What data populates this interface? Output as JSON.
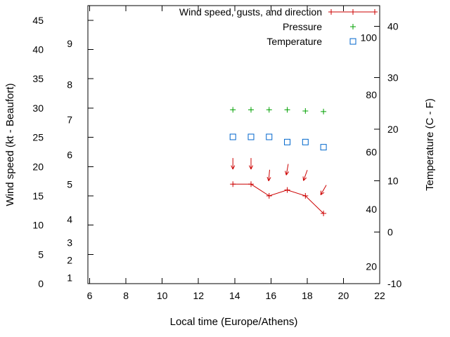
{
  "chart_data": {
    "type": "line",
    "title": "",
    "xlabel": "Local time (Europe/Athens)",
    "x_axis": {
      "ticks": [
        6,
        8,
        10,
        12,
        14,
        16,
        18,
        20,
        22
      ],
      "range": [
        5.9,
        22
      ]
    },
    "left_axis": {
      "label": "Wind speed (kt - Beaufort)",
      "unit": "kt",
      "ticks": [
        0,
        5,
        10,
        15,
        20,
        25,
        30,
        35,
        40,
        45
      ],
      "range": [
        0,
        47.5
      ],
      "beaufort_marks": [
        {
          "force": 1,
          "kt": 1
        },
        {
          "force": 2,
          "kt": 4
        },
        {
          "force": 3,
          "kt": 7
        },
        {
          "force": 4,
          "kt": 11
        },
        {
          "force": 5,
          "kt": 17
        },
        {
          "force": 6,
          "kt": 22
        },
        {
          "force": 7,
          "kt": 28
        },
        {
          "force": 8,
          "kt": 34
        },
        {
          "force": 9,
          "kt": 41
        }
      ]
    },
    "right_axis": {
      "label": "Temperature (C - F)",
      "ticks_celsius": [
        -10,
        0,
        10,
        20,
        30,
        40
      ],
      "range": [
        -10,
        44
      ],
      "fahrenheit_marks": [
        20,
        40,
        60,
        80,
        100
      ]
    },
    "legend": [
      {
        "label": "Wind speed, gusts, and direction",
        "series": "wind",
        "marker": "line-plus",
        "color": "#cc0000"
      },
      {
        "label": "Pressure",
        "series": "pressure",
        "marker": "plus",
        "color": "#00a000"
      },
      {
        "label": "Temperature",
        "series": "temperature",
        "marker": "square",
        "color": "#0066cc"
      }
    ],
    "series": [
      {
        "name": "wind-speed",
        "axis": "left",
        "style": "line-plus",
        "color": "#cc0000",
        "x": [
          13.9,
          14.9,
          15.9,
          16.9,
          17.9,
          18.9
        ],
        "y": [
          17,
          17,
          15,
          16,
          15,
          12
        ]
      },
      {
        "name": "wind-gusts-direction",
        "axis": "left",
        "style": "arrow",
        "color": "#cc0000",
        "x": [
          13.9,
          14.9,
          15.9,
          16.9,
          17.9,
          18.9
        ],
        "y": [
          20.5,
          20.5,
          18.5,
          19.5,
          18.5,
          16
        ],
        "direction_deg": [
          180,
          180,
          185,
          190,
          200,
          210
        ]
      },
      {
        "name": "pressure",
        "axis": "left",
        "style": "plus",
        "color": "#00a000",
        "x": [
          13.9,
          14.9,
          15.9,
          16.9,
          17.9,
          18.9
        ],
        "y": [
          29.7,
          29.7,
          29.7,
          29.7,
          29.5,
          29.4
        ]
      },
      {
        "name": "temperature",
        "axis": "right",
        "style": "square",
        "color": "#0066cc",
        "x": [
          13.9,
          14.9,
          15.9,
          16.9,
          17.9,
          18.9
        ],
        "y": [
          18.5,
          18.5,
          18.5,
          17.5,
          17.5,
          16.5
        ]
      }
    ]
  }
}
